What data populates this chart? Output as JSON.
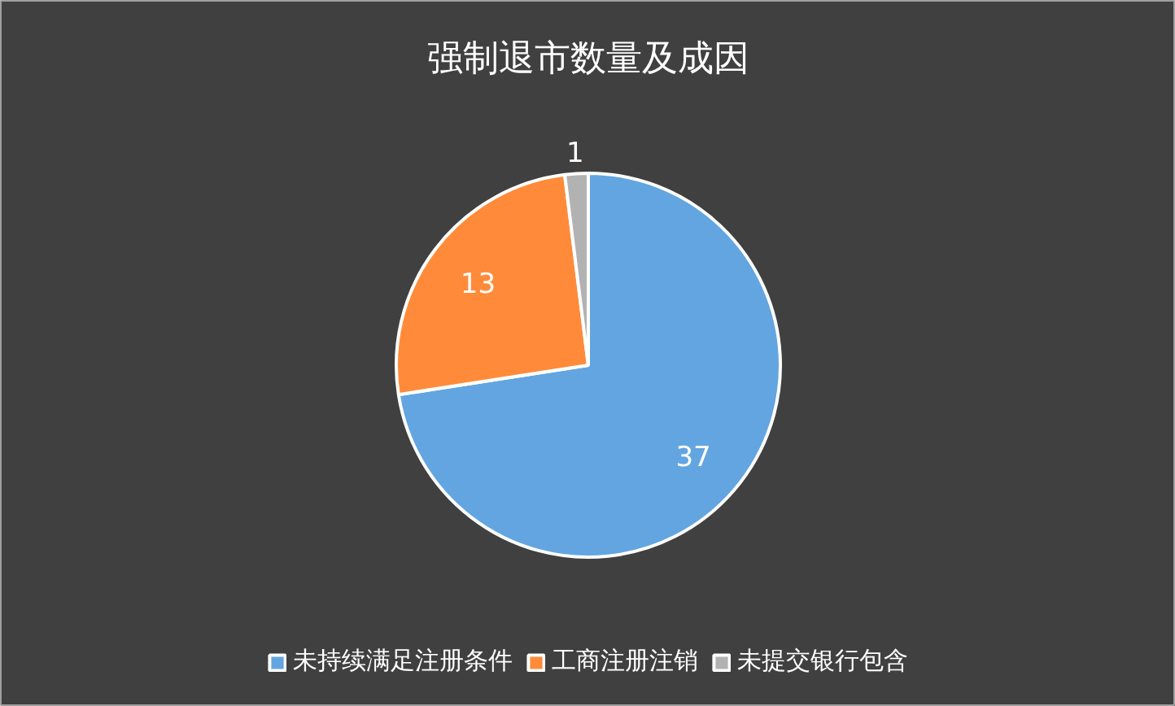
{
  "chart_data": {
    "type": "pie",
    "title": "强制退市数量及成因",
    "categories": [
      "未持续满足注册条件",
      "工商注册注销",
      "未提交银行包含"
    ],
    "values": [
      37,
      13,
      1
    ],
    "colors": [
      "#63a5e0",
      "#ff8b3a",
      "#b2b2b2"
    ],
    "data_labels": true,
    "legend": "bottom"
  }
}
